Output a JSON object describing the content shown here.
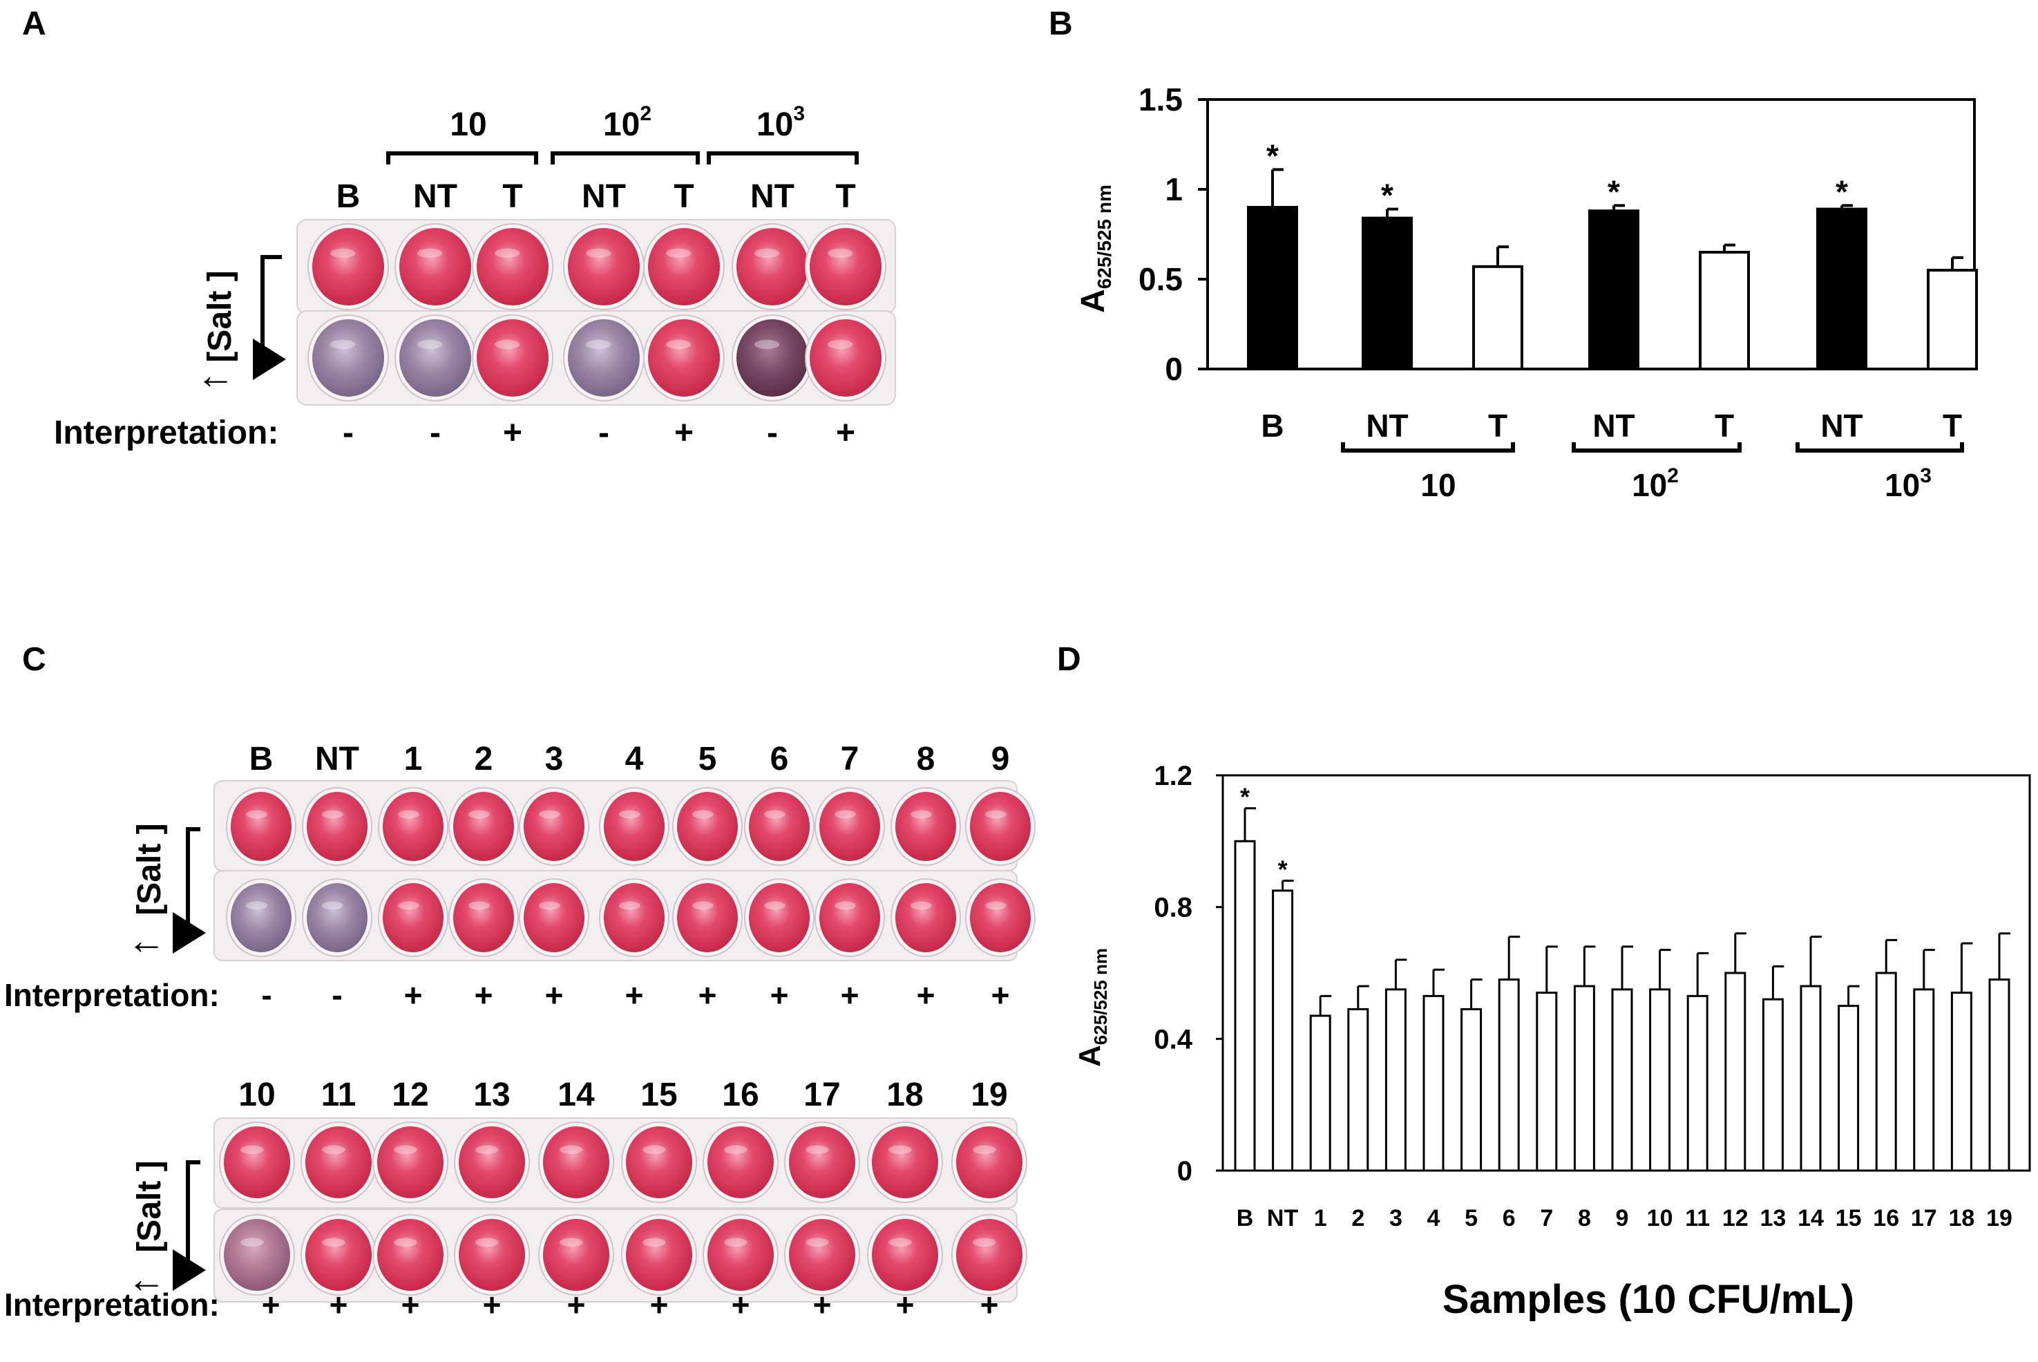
{
  "colors": {
    "red_well": "#dd3a5c",
    "purple_well": "#8a6f8e",
    "dark_purple_well": "#6a3f58",
    "bar_filled": "#000000",
    "bar_open": "#ffffff"
  },
  "panel_a": {
    "letter": "A",
    "salt_label": "[Salt ]",
    "arrow_glyph": "←",
    "header_conc_base": "10",
    "groups": [
      {
        "base": "10",
        "exp": ""
      },
      {
        "base": "10",
        "exp": "2"
      },
      {
        "base": "10",
        "exp": "3"
      }
    ],
    "columns": [
      "B",
      "NT",
      "T",
      "NT",
      "T",
      "NT",
      "T"
    ],
    "top_row_colors": [
      "red",
      "red",
      "red",
      "red",
      "red",
      "red",
      "red"
    ],
    "bottom_row_colors": [
      "purple",
      "purple",
      "red",
      "purple",
      "red",
      "dark",
      "red"
    ],
    "interpretation_label": "Interpretation:",
    "interpretation": [
      "-",
      "-",
      "+",
      "-",
      "+",
      "-",
      "+"
    ]
  },
  "panel_b": {
    "letter": "B",
    "ylabel_main": "A",
    "ylabel_sub": "625/525 nm",
    "yticks": [
      "1.5",
      "1",
      "0.5",
      "0"
    ],
    "categories": [
      "B",
      "NT",
      "T",
      "NT",
      "T",
      "NT",
      "T"
    ],
    "group_labels": [
      {
        "base": "10",
        "exp": ""
      },
      {
        "base": "10",
        "exp": "2"
      },
      {
        "base": "10",
        "exp": "3"
      }
    ],
    "star": "*"
  },
  "panel_c": {
    "letter": "C",
    "salt_label": "[Salt ]",
    "arrow_glyph": "←",
    "interpretation_label": "Interpretation:",
    "row1_columns": [
      "B",
      "NT",
      "1",
      "2",
      "3",
      "4",
      "5",
      "6",
      "7",
      "8",
      "9"
    ],
    "row1_bottom_colors": [
      "purple",
      "purple",
      "red",
      "red",
      "red",
      "red",
      "red",
      "red",
      "red",
      "red",
      "red"
    ],
    "row1_interpretation": [
      "-",
      "-",
      "+",
      "+",
      "+",
      "+",
      "+",
      "+",
      "+",
      "+",
      "+"
    ],
    "row2_columns": [
      "10",
      "11",
      "12",
      "13",
      "14",
      "15",
      "16",
      "17",
      "18",
      "19"
    ],
    "row2_interpretation": [
      "+",
      "+",
      "+",
      "+",
      "+",
      "+",
      "+",
      "+",
      "+",
      "+"
    ]
  },
  "panel_d": {
    "letter": "D",
    "ylabel_main": "A",
    "ylabel_sub": "625/525 nm",
    "xlabel": "Samples (10 CFU/mL)",
    "yticks": [
      "1.2",
      "0.8",
      "0.4",
      "0"
    ],
    "star": "*"
  },
  "chart_data": [
    {
      "type": "bar",
      "panel": "B",
      "title": "",
      "xlabel": "",
      "ylabel": "A625/525 nm",
      "ylim": [
        0,
        1.5
      ],
      "categories": [
        "B",
        "NT",
        "T",
        "NT",
        "T",
        "NT",
        "T"
      ],
      "groups": [
        "",
        "10",
        "10",
        "10^2",
        "10^2",
        "10^3",
        "10^3"
      ],
      "values": [
        0.9,
        0.84,
        0.57,
        0.88,
        0.65,
        0.89,
        0.55
      ],
      "errors": [
        0.21,
        0.05,
        0.11,
        0.03,
        0.04,
        0.02,
        0.07
      ],
      "filled": [
        true,
        true,
        false,
        true,
        false,
        true,
        false
      ],
      "significant": [
        true,
        true,
        false,
        true,
        false,
        true,
        false
      ]
    },
    {
      "type": "bar",
      "panel": "D",
      "title": "",
      "xlabel": "Samples (10 CFU/mL)",
      "ylabel": "A625/525 nm",
      "ylim": [
        0,
        1.2
      ],
      "categories": [
        "B",
        "NT",
        "1",
        "2",
        "3",
        "4",
        "5",
        "6",
        "7",
        "8",
        "9",
        "10",
        "11",
        "12",
        "13",
        "14",
        "15",
        "16",
        "17",
        "18",
        "19"
      ],
      "values": [
        1.0,
        0.85,
        0.47,
        0.49,
        0.55,
        0.53,
        0.49,
        0.58,
        0.54,
        0.56,
        0.55,
        0.55,
        0.53,
        0.6,
        0.52,
        0.56,
        0.5,
        0.6,
        0.55,
        0.54,
        0.58
      ],
      "errors": [
        0.1,
        0.03,
        0.06,
        0.07,
        0.09,
        0.08,
        0.09,
        0.13,
        0.14,
        0.12,
        0.13,
        0.12,
        0.13,
        0.12,
        0.1,
        0.15,
        0.06,
        0.1,
        0.12,
        0.15,
        0.14
      ],
      "significant": [
        true,
        true,
        false,
        false,
        false,
        false,
        false,
        false,
        false,
        false,
        false,
        false,
        false,
        false,
        false,
        false,
        false,
        false,
        false,
        false,
        false
      ]
    }
  ]
}
